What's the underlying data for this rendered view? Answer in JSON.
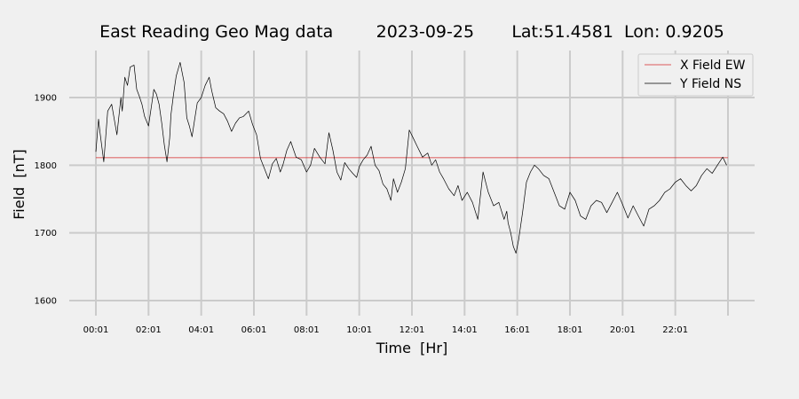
{
  "chart_data": {
    "type": "line",
    "title": "East Reading Geo Mag data        2023-09-25       Lat:51.4581  Lon: 0.9205",
    "xlabel": "Time  [Hr]",
    "ylabel": "Field  [nT]",
    "x_unit": "hours",
    "xlim": [
      0,
      24
    ],
    "ylim": [
      1575,
      1970
    ],
    "x_ticks": [
      0,
      2,
      4,
      6,
      8,
      10,
      12,
      14,
      16,
      18,
      20,
      22,
      24
    ],
    "x_tick_labels": [
      "00:01",
      "02:01",
      "04:01",
      "06:01",
      "08:01",
      "10:01",
      "12:01",
      "14:01",
      "16:01",
      "18:01",
      "20:01",
      "22:01",
      ""
    ],
    "y_ticks": [
      1600,
      1700,
      1800,
      1900
    ],
    "y_tick_labels": [
      "1600",
      "1700",
      "1800",
      "1900"
    ],
    "grid": true,
    "legend_position": "top-right",
    "series": [
      {
        "name": "X Field EW",
        "color": "#d62728",
        "x": [
          0,
          24
        ],
        "y": [
          1811,
          1811
        ]
      },
      {
        "name": "Y Field NS",
        "color": "#000000",
        "x": [
          0,
          0.1,
          0.15,
          0.3,
          0.45,
          0.6,
          0.8,
          0.95,
          1.0,
          1.1,
          1.2,
          1.3,
          1.45,
          1.55,
          1.65,
          1.75,
          1.85,
          2.0,
          2.1,
          2.2,
          2.3,
          2.4,
          2.5,
          2.6,
          2.7,
          2.8,
          2.85,
          2.95,
          3.05,
          3.2,
          3.35,
          3.45,
          3.55,
          3.65,
          3.75,
          3.85,
          4.0,
          4.15,
          4.3,
          4.4,
          4.55,
          4.7,
          4.85,
          5.0,
          5.15,
          5.3,
          5.45,
          5.6,
          5.8,
          5.95,
          6.1,
          6.25,
          6.4,
          6.55,
          6.7,
          6.85,
          7.0,
          7.1,
          7.25,
          7.4,
          7.6,
          7.8,
          8.0,
          8.15,
          8.3,
          8.5,
          8.7,
          8.85,
          9.0,
          9.15,
          9.3,
          9.45,
          9.6,
          9.75,
          9.9,
          10.0,
          10.15,
          10.3,
          10.45,
          10.6,
          10.75,
          10.9,
          11.05,
          11.2,
          11.3,
          11.45,
          11.6,
          11.75,
          11.9,
          12.05,
          12.2,
          12.4,
          12.6,
          12.75,
          12.9,
          13.05,
          13.2,
          13.4,
          13.6,
          13.75,
          13.9,
          14.1,
          14.3,
          14.5,
          14.7,
          14.9,
          15.1,
          15.3,
          15.5,
          15.6,
          15.65,
          15.75,
          15.85,
          15.95,
          16.05,
          16.2,
          16.35,
          16.5,
          16.65,
          16.8,
          17.0,
          17.2,
          17.4,
          17.6,
          17.8,
          18.0,
          18.2,
          18.4,
          18.6,
          18.8,
          19.0,
          19.2,
          19.4,
          19.6,
          19.8,
          20.0,
          20.2,
          20.4,
          20.6,
          20.8,
          21.0,
          21.2,
          21.4,
          21.6,
          21.8,
          22.0,
          22.2,
          22.4,
          22.6,
          22.8,
          23.0,
          23.2,
          23.4,
          23.6,
          23.8,
          23.95
        ],
        "y": [
          1820,
          1868,
          1850,
          1805,
          1880,
          1890,
          1845,
          1900,
          1880,
          1930,
          1918,
          1945,
          1948,
          1912,
          1902,
          1890,
          1872,
          1858,
          1885,
          1912,
          1905,
          1890,
          1862,
          1830,
          1805,
          1840,
          1875,
          1905,
          1932,
          1952,
          1922,
          1870,
          1858,
          1842,
          1868,
          1892,
          1900,
          1918,
          1930,
          1910,
          1885,
          1880,
          1876,
          1865,
          1850,
          1862,
          1870,
          1872,
          1880,
          1860,
          1845,
          1810,
          1795,
          1780,
          1802,
          1810,
          1790,
          1800,
          1822,
          1835,
          1812,
          1808,
          1790,
          1800,
          1825,
          1812,
          1802,
          1848,
          1822,
          1790,
          1778,
          1804,
          1795,
          1788,
          1782,
          1798,
          1808,
          1815,
          1828,
          1800,
          1792,
          1772,
          1765,
          1748,
          1780,
          1760,
          1775,
          1795,
          1852,
          1840,
          1828,
          1812,
          1818,
          1800,
          1808,
          1790,
          1780,
          1765,
          1755,
          1770,
          1748,
          1760,
          1745,
          1720,
          1790,
          1760,
          1740,
          1745,
          1720,
          1732,
          1715,
          1700,
          1680,
          1670,
          1690,
          1730,
          1775,
          1790,
          1800,
          1795,
          1785,
          1780,
          1760,
          1740,
          1735,
          1760,
          1748,
          1725,
          1720,
          1740,
          1748,
          1745,
          1730,
          1745,
          1760,
          1742,
          1722,
          1740,
          1725,
          1710,
          1735,
          1740,
          1748,
          1760,
          1765,
          1775,
          1780,
          1770,
          1762,
          1770,
          1785,
          1795,
          1788,
          1800,
          1812,
          1800
        ]
      }
    ]
  }
}
